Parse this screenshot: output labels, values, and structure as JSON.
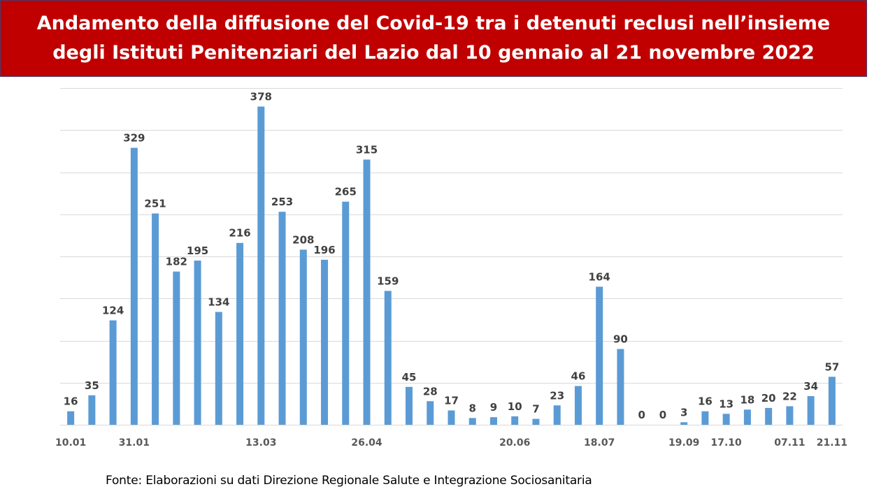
{
  "title": {
    "line1": "Andamento della diffusione del Covid-19 tra i detenuti reclusi nell’insieme",
    "line2": "degli Istituti Penitenziari del Lazio dal 10 gennaio al 21 novembre 2022"
  },
  "source": "Fonte: Elaborazioni su dati Direzione Regionale Salute e Integrazione Sociosanitaria",
  "colors": {
    "title_bg": "#c00000",
    "bar": "#5b9bd5",
    "grid": "#d9d9d9",
    "label": "#404040"
  },
  "chart_data": {
    "type": "bar",
    "values": [
      16,
      35,
      124,
      329,
      251,
      182,
      195,
      134,
      216,
      378,
      253,
      208,
      196,
      265,
      315,
      159,
      45,
      28,
      17,
      8,
      9,
      10,
      7,
      23,
      46,
      164,
      90,
      0,
      0,
      3,
      16,
      13,
      18,
      20,
      22,
      34,
      57
    ],
    "x_tick_labels": [
      "10.01",
      "",
      "",
      "31.01",
      "",
      "",
      "",
      "",
      "",
      "13.03",
      "",
      "",
      "",
      "",
      "26.04",
      "",
      "",
      "",
      "",
      "",
      "",
      "20.06",
      "",
      "",
      "",
      "18.07",
      "",
      "",
      "",
      "19.09",
      "",
      "17.10",
      "",
      "",
      "07.11",
      "",
      "21.11"
    ],
    "ylim": [
      0,
      400
    ],
    "grid": true,
    "legend": "none"
  }
}
